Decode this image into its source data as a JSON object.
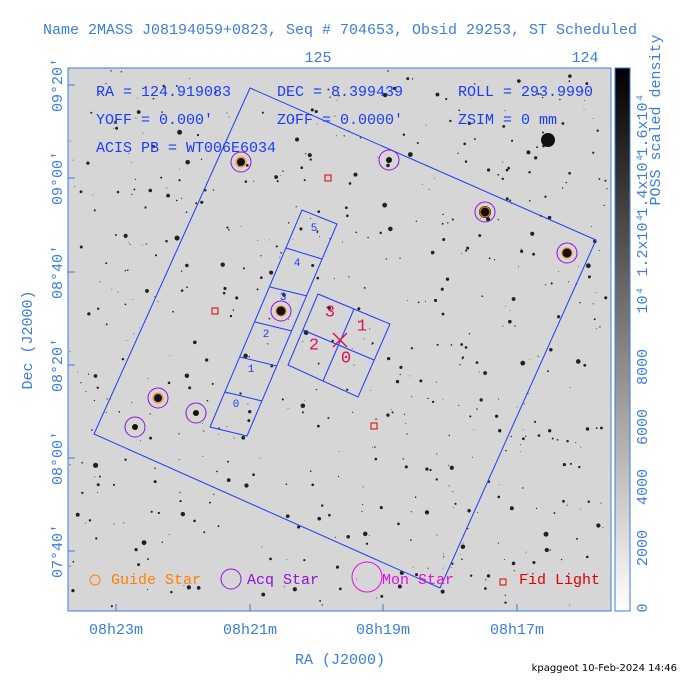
{
  "title": "Name 2MASS J08194059+0823, Seq # 704653, Obsid 29253, ST Scheduled",
  "info": [
    [
      "RA = 124.919083",
      "DEC = 8.399439",
      "ROLL = 293.9990"
    ],
    [
      "YOFF =   0.000'",
      "ZOFF =  0.0000'",
      "ZSIM = 0 mm"
    ],
    [
      "ACIS PB = WT006E6034"
    ]
  ],
  "x_axis": {
    "label": "RA (J2000)",
    "ticks": [
      "08h23m",
      "08h21m",
      "08h19m",
      "08h17m"
    ],
    "top_ticks": [
      "125",
      "124"
    ]
  },
  "y_axis": {
    "label": "Dec (J2000)",
    "ticks": [
      "09°20'",
      "09°00'",
      "08°40'",
      "08°20'",
      "08°00'",
      "07°40'"
    ]
  },
  "colorbar": {
    "label": "POSS scaled density",
    "ticks": [
      "0",
      "2000",
      "4000",
      "6000",
      "8000",
      "10⁴",
      "1.2x10⁴",
      "1.4x10⁴",
      "1.6x10⁴"
    ]
  },
  "ccd_labels": {
    "acis_s": [
      "0",
      "1",
      "2",
      "3",
      "4",
      "5"
    ],
    "acis_i": [
      "3",
      "1",
      "2",
      "0"
    ]
  },
  "legend": [
    "Guide Star",
    "Acq Star",
    "Mon Star",
    "Fid Light"
  ],
  "footer": "kpaggeot 10-Feb-2024 14:46"
}
